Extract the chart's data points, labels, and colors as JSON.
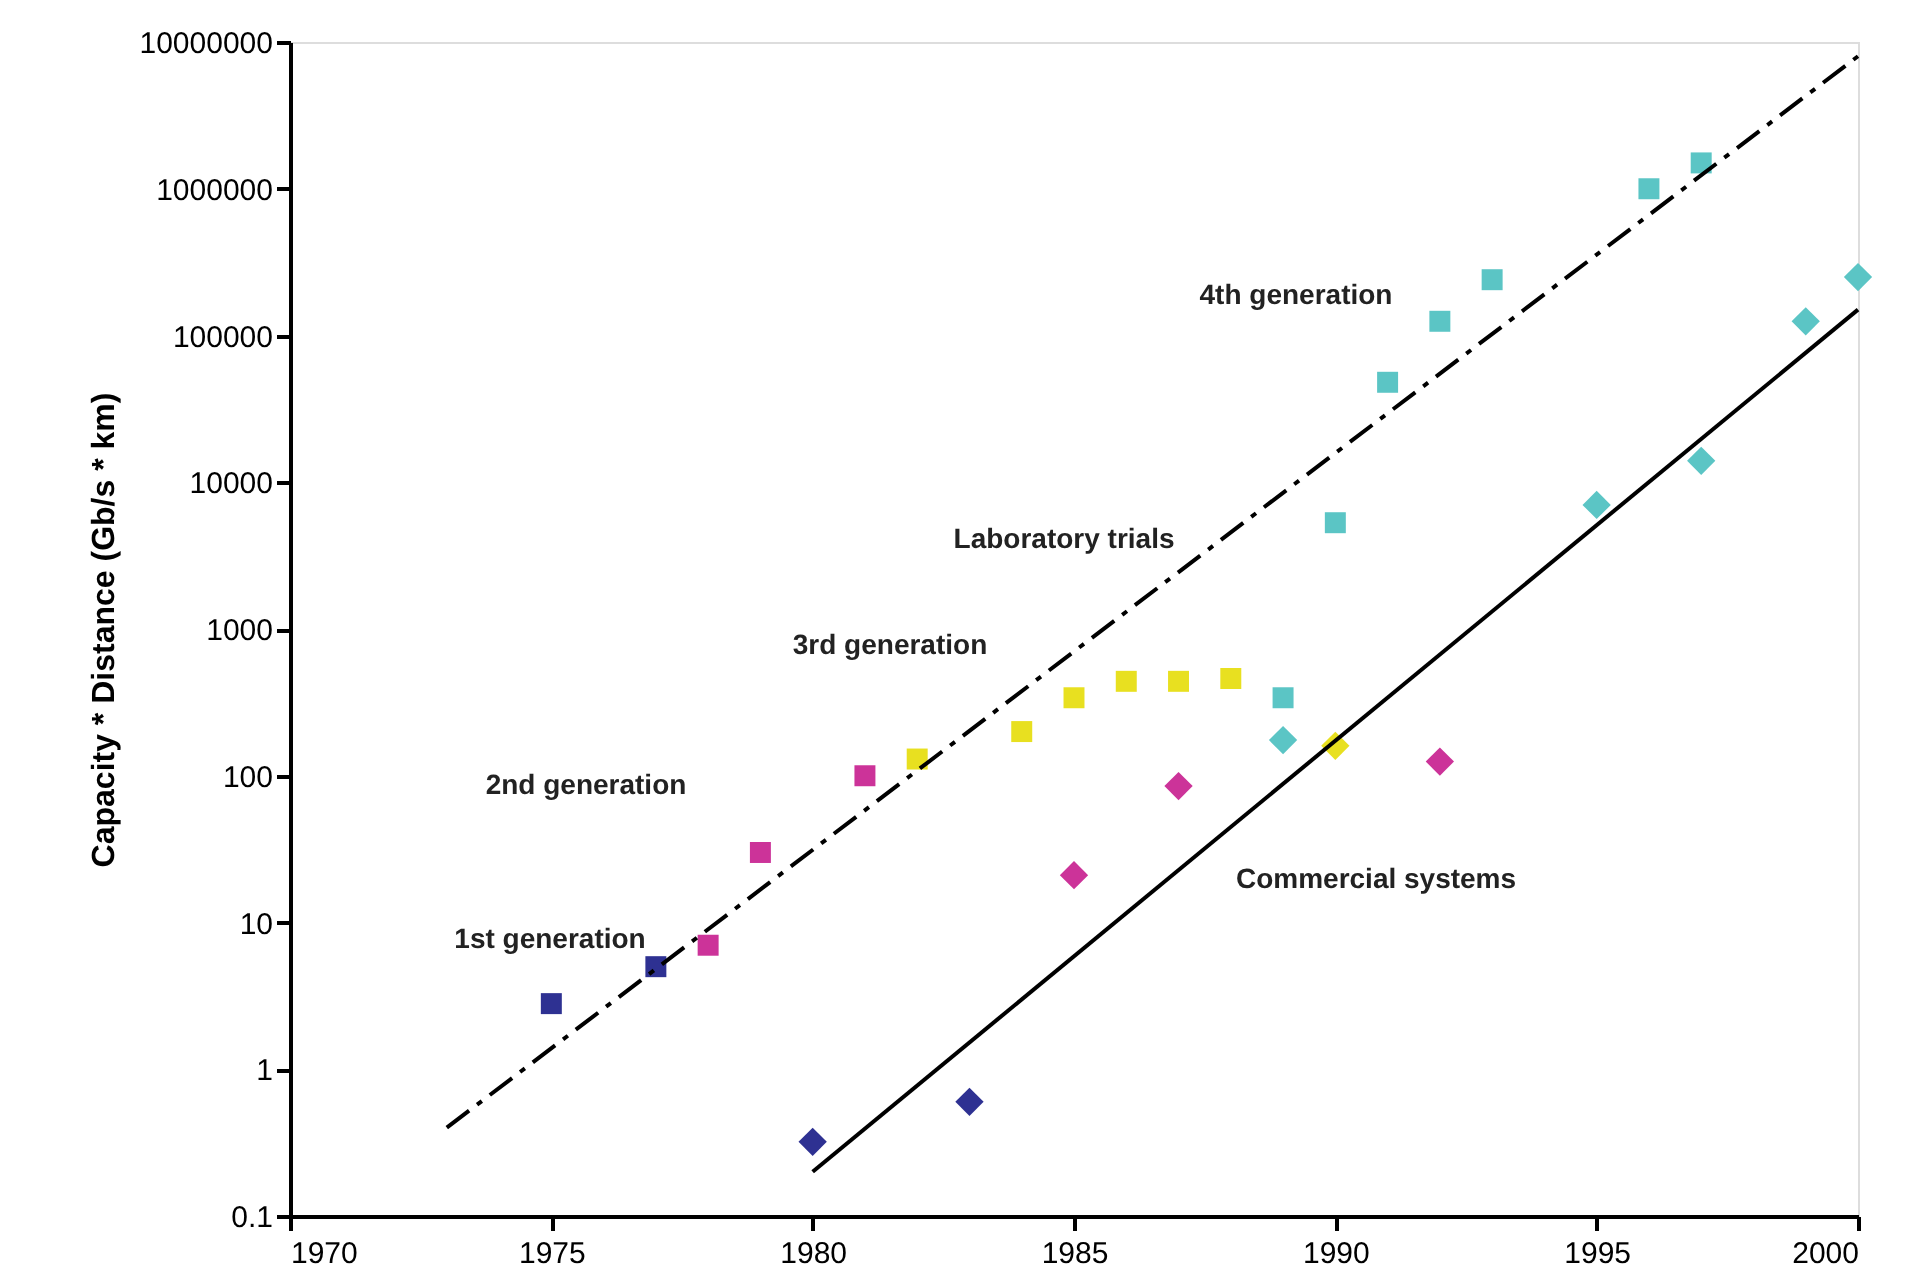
{
  "chart_data": {
    "type": "scatter",
    "ylabel": "Capacity * Distance (Gb/s * km)",
    "log": "y",
    "grid": false,
    "xlim": [
      1970,
      2000
    ],
    "xticks": [
      1970,
      1975,
      1980,
      1985,
      1990,
      1995,
      2000
    ],
    "ylim": [
      0.1,
      10000000
    ],
    "yticks": [
      0.1,
      1,
      10,
      100,
      1000,
      10000,
      100000,
      1000000,
      10000000
    ],
    "series": [
      {
        "marker": "square",
        "color": "#2e3192",
        "x": [
          1975,
          1977
        ],
        "values": [
          2.8,
          5
        ]
      },
      {
        "marker": "diamond",
        "color": "#2e3192",
        "x": [
          1980,
          1983
        ],
        "values": [
          0.32,
          0.6
        ]
      },
      {
        "marker": "square",
        "color": "#cc3399",
        "x": [
          1978,
          1979,
          1981
        ],
        "values": [
          7,
          30,
          100
        ]
      },
      {
        "marker": "diamond",
        "color": "#cc3399",
        "x": [
          1985,
          1987,
          1992
        ],
        "values": [
          21,
          85,
          125
        ]
      },
      {
        "marker": "square",
        "color": "#e8e020",
        "x": [
          1982,
          1984,
          1985,
          1986,
          1987,
          1988
        ],
        "values": [
          130,
          200,
          340,
          440,
          440,
          460
        ]
      },
      {
        "marker": "diamond",
        "color": "#e8e020",
        "x": [
          1990
        ],
        "values": [
          160
        ]
      },
      {
        "marker": "square",
        "color": "#5bc5c5",
        "x": [
          1989,
          1990,
          1991,
          1992,
          1993,
          1996,
          1997
        ],
        "values": [
          340,
          5300,
          48000,
          125000,
          240000,
          1000000,
          1500000
        ]
      },
      {
        "marker": "diamond",
        "color": "#5bc5c5",
        "x": [
          1989,
          1995,
          1997,
          1999,
          2000
        ],
        "values": [
          175,
          7000,
          14000,
          125000,
          250000
        ]
      },
      {
        "type": "line",
        "line_style": "dashed",
        "marker": "none",
        "color": "#000000",
        "x": [
          1973,
          2000
        ],
        "values": [
          0.4,
          8000000
        ]
      },
      {
        "type": "line",
        "line_style": "solid",
        "marker": "none",
        "color": "#000000",
        "x": [
          1980,
          2000
        ],
        "values": [
          0.2,
          150000
        ]
      }
    ],
    "annotations": [
      "1st generation",
      "2nd generation",
      "3rd generation",
      "Laboratory trials",
      "4th generation",
      "Commercial systems"
    ]
  }
}
